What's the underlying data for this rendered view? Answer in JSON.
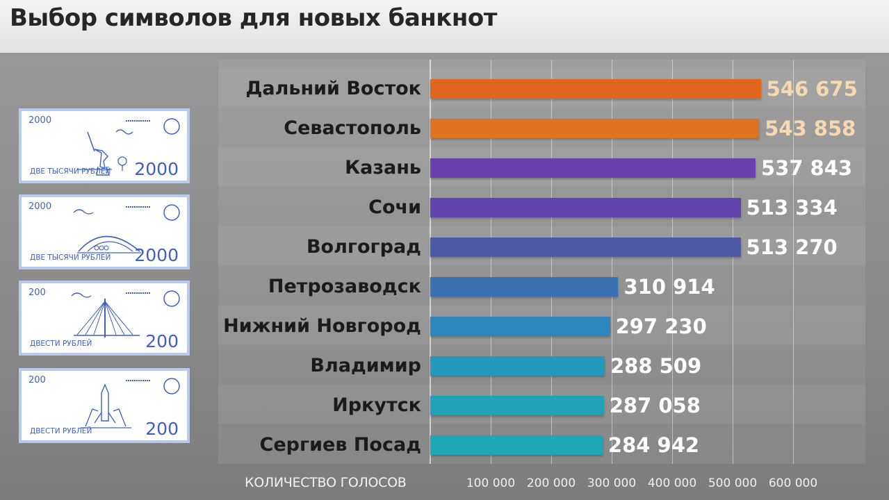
{
  "title": "Выбор символов для новых банкнот",
  "colors": {
    "orange": "#e2651d",
    "purple": "#6a3fae",
    "indigo": "#4c5aa8",
    "blue": "#2f86bf",
    "teal": "#1ea7b7",
    "value_highlight": "#f6d9b0",
    "value_default": "#ffffff"
  },
  "banknotes": [
    {
      "corner": "2000",
      "text": "ДВЕ ТЫСЯЧИ РУБЛЕЙ",
      "denomination": "2000",
      "art": "monument-icon"
    },
    {
      "corner": "2000",
      "text": "ДВЕ ТЫСЯЧИ РУБЛЕЙ",
      "denomination": "2000",
      "art": "stadium-icon"
    },
    {
      "corner": "200",
      "text": "ДВЕСТИ РУБЛЕЙ",
      "denomination": "200",
      "art": "bridge-icon"
    },
    {
      "corner": "200",
      "text": "ДВЕСТИ РУБЛЕЙ",
      "denomination": "200",
      "art": "rocket-icon"
    }
  ],
  "chart_data": {
    "type": "bar",
    "orientation": "horizontal",
    "title": "Выбор символов для новых банкнот",
    "xlabel": "КОЛИЧЕСТВО ГОЛОСОВ",
    "ylabel": "",
    "xlim": [
      0,
      700000
    ],
    "xticks": [
      100000,
      200000,
      300000,
      400000,
      500000,
      600000
    ],
    "xtick_labels": [
      "100 000",
      "200 000",
      "300 000",
      "400 000",
      "500 000",
      "600 000"
    ],
    "grid": true,
    "categories": [
      "Дальний Восток",
      "Севастополь",
      "Казань",
      "Сочи",
      "Волгоград",
      "Петрозаводск",
      "Нижний Новгород",
      "Владимир",
      "Иркутск",
      "Сергиев Посад"
    ],
    "values": [
      546675,
      543858,
      537843,
      513334,
      513270,
      310914,
      297230,
      288509,
      287058,
      284942
    ],
    "value_labels": [
      "546 675",
      "543 858",
      "537 843",
      "513 334",
      "513 270",
      "310 914",
      "297 230",
      "288 509",
      "287 058",
      "284 942"
    ],
    "bar_colors": [
      "#e2651d",
      "#e07322",
      "#6a3fae",
      "#6044ac",
      "#4c5aa8",
      "#3a72b4",
      "#2f86bf",
      "#2598bd",
      "#21a2ba",
      "#1ea7b7"
    ],
    "value_label_colors": [
      "#f6d9b0",
      "#f6d9b0",
      "#ffffff",
      "#ffffff",
      "#ffffff",
      "#ffffff",
      "#ffffff",
      "#ffffff",
      "#ffffff",
      "#ffffff"
    ]
  }
}
